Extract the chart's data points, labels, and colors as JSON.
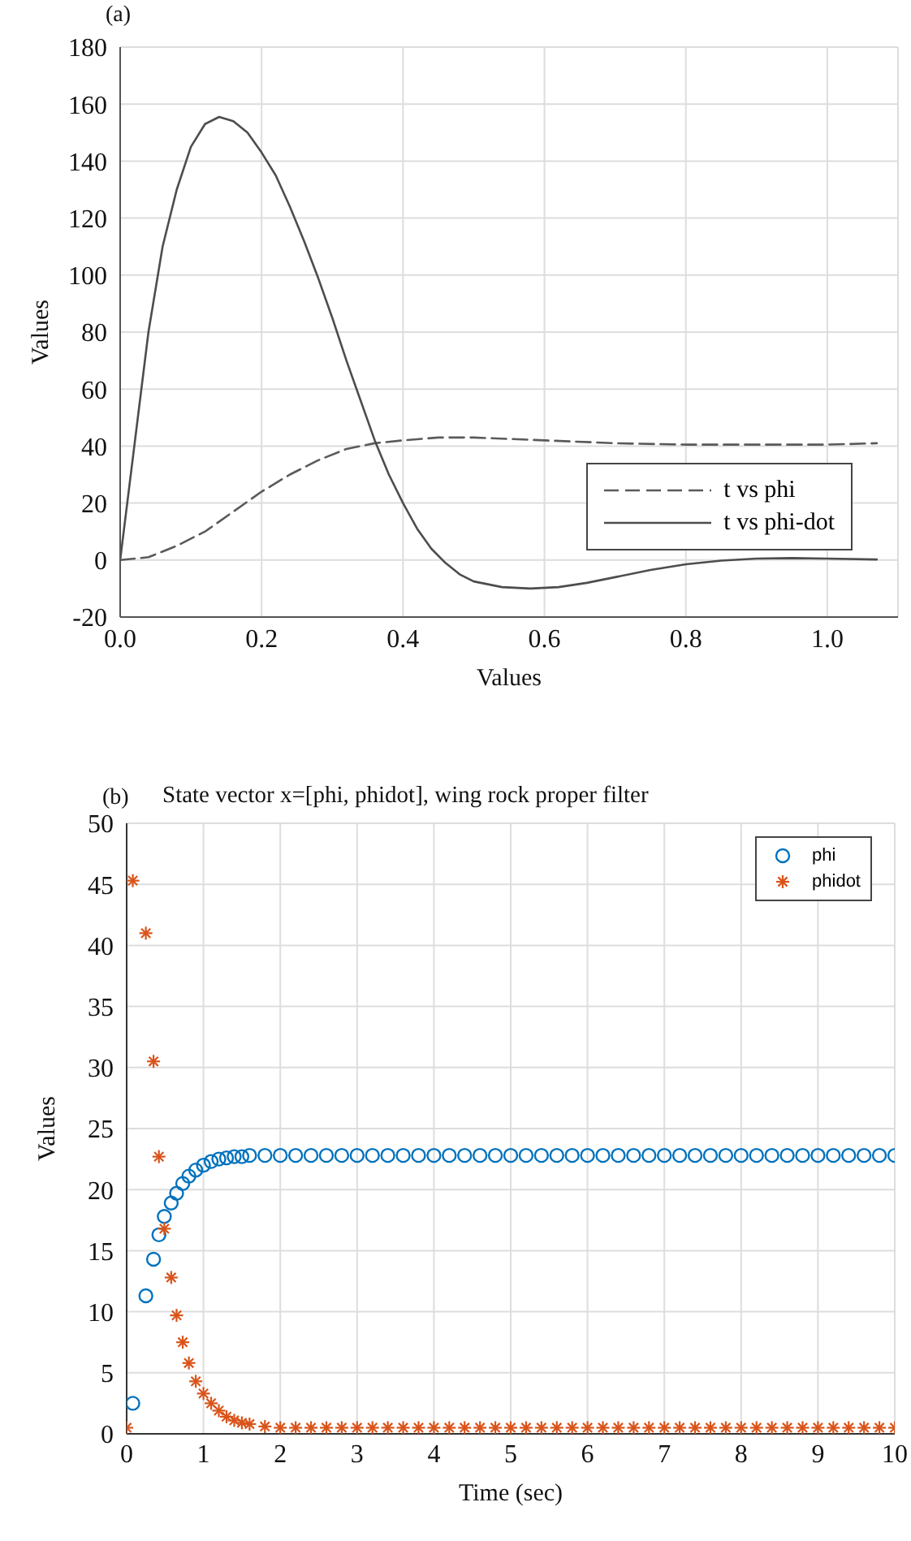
{
  "chart_data": [
    {
      "type": "line",
      "annotations": [
        "(a)"
      ],
      "xlabel": "Values",
      "ylabel": "Values",
      "xlim": [
        0,
        1.1
      ],
      "xticks": [
        {
          "value": 0,
          "label": "0.0"
        },
        {
          "value": 0.2,
          "label": "0.2"
        },
        {
          "value": 0.4,
          "label": "0.4"
        },
        {
          "value": 0.6,
          "label": "0.6"
        },
        {
          "value": 0.8,
          "label": "0.8"
        },
        {
          "value": 1.0,
          "label": "1.0"
        }
      ],
      "ylim": [
        -20,
        180
      ],
      "yticks": [
        -20,
        0,
        20,
        40,
        60,
        80,
        100,
        120,
        140,
        160,
        180
      ],
      "grid": true,
      "legend": "bottom right",
      "series": [
        {
          "name": "t vs phi",
          "color": "#5a5a5a",
          "line_style": "dashed",
          "x": [
            0,
            0.04,
            0.08,
            0.12,
            0.16,
            0.2,
            0.24,
            0.28,
            0.32,
            0.36,
            0.4,
            0.45,
            0.5,
            0.55,
            0.6,
            0.7,
            0.8,
            0.9,
            1.0,
            1.07
          ],
          "values": [
            0,
            1,
            5,
            10,
            17,
            24,
            30,
            35,
            39,
            41,
            42,
            43,
            43,
            42.5,
            42,
            41,
            40.5,
            40.5,
            40.5,
            41
          ]
        },
        {
          "name": "t vs phi-dot",
          "color": "#4d4d4d",
          "line_style": "solid",
          "x": [
            0,
            0.02,
            0.04,
            0.06,
            0.08,
            0.1,
            0.12,
            0.14,
            0.16,
            0.18,
            0.2,
            0.22,
            0.24,
            0.26,
            0.28,
            0.3,
            0.32,
            0.34,
            0.36,
            0.38,
            0.4,
            0.42,
            0.44,
            0.46,
            0.48,
            0.5,
            0.54,
            0.58,
            0.62,
            0.66,
            0.7,
            0.75,
            0.8,
            0.85,
            0.9,
            0.95,
            1.0,
            1.07
          ],
          "values": [
            0,
            40,
            80,
            110,
            130,
            145,
            153,
            155.5,
            154,
            150,
            143,
            135,
            124,
            112,
            99,
            85,
            70,
            56,
            42,
            30,
            20,
            11,
            4,
            -1,
            -5,
            -7.5,
            -9.5,
            -10,
            -9.5,
            -8,
            -6,
            -3.5,
            -1.5,
            -0.2,
            0.5,
            0.7,
            0.5,
            0.2
          ]
        }
      ]
    },
    {
      "type": "scatter",
      "annotations": [
        "(b)"
      ],
      "title": "State vector x=[phi, phidot], wing rock proper filter",
      "xlabel": "Time (sec)",
      "ylabel": "Values",
      "xlim": [
        0,
        10
      ],
      "xticks": [
        0,
        1,
        2,
        3,
        4,
        5,
        6,
        7,
        8,
        9,
        10
      ],
      "ylim": [
        0,
        50
      ],
      "yticks": [
        0,
        5,
        10,
        15,
        20,
        25,
        30,
        35,
        40,
        45,
        50
      ],
      "grid": true,
      "legend": "top right",
      "series": [
        {
          "name": "phi",
          "color": "#0072bd",
          "marker": "circle",
          "x": [
            0.08,
            0.25,
            0.35,
            0.42,
            0.49,
            0.58,
            0.65,
            0.73,
            0.81,
            0.9,
            1.0,
            1.1,
            1.2,
            1.3,
            1.4,
            1.5,
            1.6,
            1.8,
            2.0,
            2.2,
            2.4,
            2.6,
            2.8,
            3.0,
            3.2,
            3.4,
            3.6,
            3.8,
            4.0,
            4.2,
            4.4,
            4.6,
            4.8,
            5.0,
            5.2,
            5.4,
            5.6,
            5.8,
            6.0,
            6.2,
            6.4,
            6.6,
            6.8,
            7.0,
            7.2,
            7.4,
            7.6,
            7.8,
            8.0,
            8.2,
            8.4,
            8.6,
            8.8,
            9.0,
            9.2,
            9.4,
            9.6,
            9.8,
            10.0
          ],
          "values": [
            2.5,
            11.3,
            14.3,
            16.3,
            17.8,
            18.9,
            19.7,
            20.5,
            21.1,
            21.6,
            22.0,
            22.3,
            22.5,
            22.6,
            22.7,
            22.7,
            22.8,
            22.8,
            22.8,
            22.8,
            22.8,
            22.8,
            22.8,
            22.8,
            22.8,
            22.8,
            22.8,
            22.8,
            22.8,
            22.8,
            22.8,
            22.8,
            22.8,
            22.8,
            22.8,
            22.8,
            22.8,
            22.8,
            22.8,
            22.8,
            22.8,
            22.8,
            22.8,
            22.8,
            22.8,
            22.8,
            22.8,
            22.8,
            22.8,
            22.8,
            22.8,
            22.8,
            22.8,
            22.8,
            22.8,
            22.8,
            22.8,
            22.8,
            22.8
          ]
        },
        {
          "name": "phidot",
          "color": "#d95319",
          "marker": "cross",
          "x": [
            0,
            0.08,
            0.25,
            0.35,
            0.42,
            0.49,
            0.58,
            0.65,
            0.73,
            0.81,
            0.9,
            1.0,
            1.1,
            1.2,
            1.3,
            1.4,
            1.5,
            1.6,
            1.8,
            2.0,
            2.2,
            2.4,
            2.6,
            2.8,
            3.0,
            3.2,
            3.4,
            3.6,
            3.8,
            4.0,
            4.2,
            4.4,
            4.6,
            4.8,
            5.0,
            5.2,
            5.4,
            5.6,
            5.8,
            6.0,
            6.2,
            6.4,
            6.6,
            6.8,
            7.0,
            7.2,
            7.4,
            7.6,
            7.8,
            8.0,
            8.2,
            8.4,
            8.6,
            8.8,
            9.0,
            9.2,
            9.4,
            9.6,
            9.8,
            10.0
          ],
          "values": [
            0.5,
            45.3,
            41,
            30.5,
            22.7,
            16.8,
            12.8,
            9.7,
            7.5,
            5.8,
            4.3,
            3.3,
            2.5,
            1.9,
            1.4,
            1.1,
            0.9,
            0.8,
            0.6,
            0.5,
            0.5,
            0.5,
            0.5,
            0.5,
            0.5,
            0.5,
            0.5,
            0.5,
            0.5,
            0.5,
            0.5,
            0.5,
            0.5,
            0.5,
            0.5,
            0.5,
            0.5,
            0.5,
            0.5,
            0.5,
            0.5,
            0.5,
            0.5,
            0.5,
            0.5,
            0.5,
            0.5,
            0.5,
            0.5,
            0.5,
            0.5,
            0.5,
            0.5,
            0.5,
            0.5,
            0.5,
            0.5,
            0.5,
            0.5,
            0.5
          ]
        }
      ]
    }
  ]
}
